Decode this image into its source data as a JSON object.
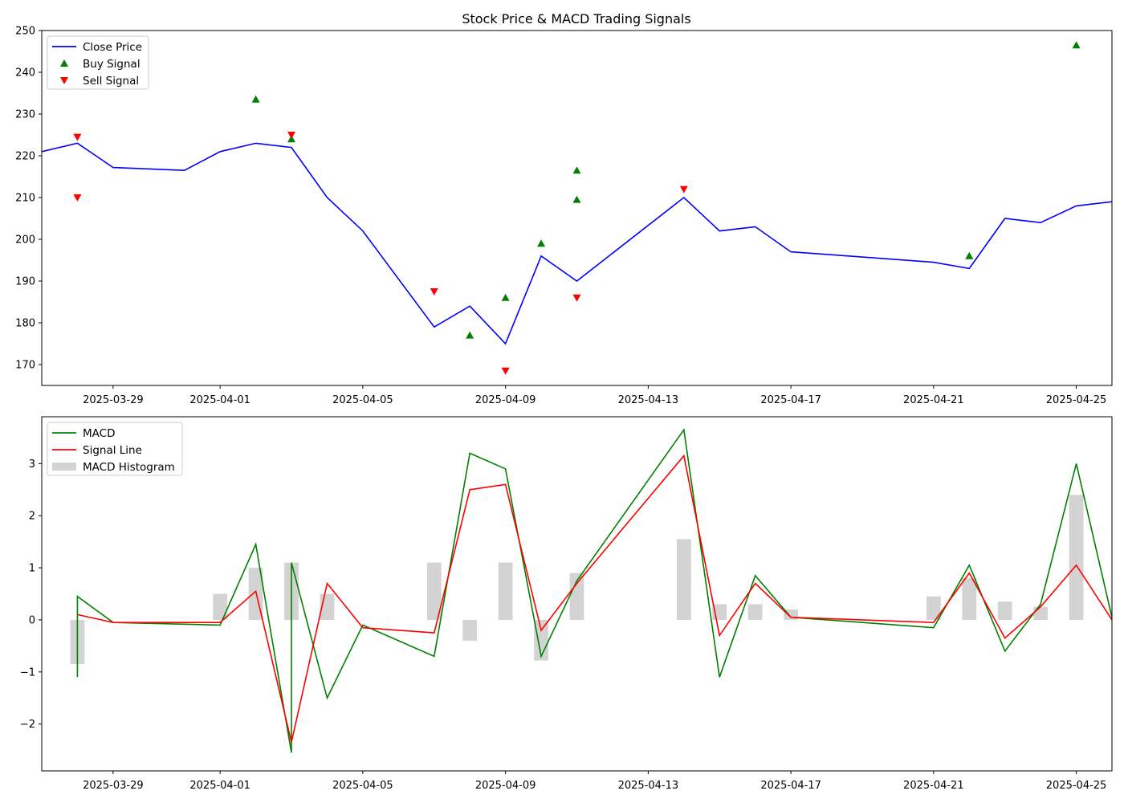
{
  "chart_data": [
    {
      "type": "line",
      "title": "Stock Price & MACD Trading Signals",
      "xlabel": "",
      "ylabel": "",
      "xlim": [
        "2025-03-27",
        "2025-04-26"
      ],
      "ylim": [
        165,
        250
      ],
      "yticks": [
        170,
        180,
        190,
        200,
        210,
        220,
        230,
        240,
        250
      ],
      "xticks": [
        "2025-03-29",
        "2025-04-01",
        "2025-04-05",
        "2025-04-09",
        "2025-04-13",
        "2025-04-17",
        "2025-04-21",
        "2025-04-25"
      ],
      "grid": false,
      "legend": {
        "placement": "top-left",
        "entries": [
          "Close Price",
          "Buy Signal",
          "Sell Signal"
        ]
      },
      "series": [
        {
          "name": "Close Price",
          "kind": "line",
          "color": "#0000ff",
          "x": [
            "2025-03-27",
            "2025-03-28",
            "2025-03-29",
            "2025-03-31",
            "2025-04-01",
            "2025-04-02",
            "2025-04-03",
            "2025-04-04",
            "2025-04-05",
            "2025-04-07",
            "2025-04-08",
            "2025-04-09",
            "2025-04-10",
            "2025-04-11",
            "2025-04-14",
            "2025-04-15",
            "2025-04-16",
            "2025-04-17",
            "2025-04-21",
            "2025-04-22",
            "2025-04-23",
            "2025-04-24",
            "2025-04-25",
            "2025-04-26"
          ],
          "y": [
            221,
            223,
            217.2,
            216.5,
            221,
            223,
            222,
            210,
            202,
            179,
            184,
            175,
            196,
            190,
            210,
            202,
            203,
            197,
            194.5,
            193,
            205,
            204,
            208,
            209
          ]
        },
        {
          "name": "Buy Signal",
          "kind": "scatter",
          "marker": "triangle-up",
          "color": "#008000",
          "x": [
            "2025-04-02",
            "2025-04-03",
            "2025-04-08",
            "2025-04-09",
            "2025-04-10",
            "2025-04-11",
            "2025-04-11",
            "2025-04-22",
            "2025-04-25"
          ],
          "y": [
            233.5,
            224,
            177,
            186,
            199,
            216.5,
            209.5,
            196,
            246.5
          ]
        },
        {
          "name": "Sell Signal",
          "kind": "scatter",
          "marker": "triangle-down",
          "color": "#ff0000",
          "x": [
            "2025-03-28",
            "2025-03-28",
            "2025-04-03",
            "2025-04-07",
            "2025-04-09",
            "2025-04-11",
            "2025-04-14"
          ],
          "y": [
            210,
            224.5,
            225,
            187.5,
            168.5,
            186,
            212
          ]
        }
      ]
    },
    {
      "type": "line",
      "title": "",
      "xlabel": "",
      "ylabel": "",
      "xlim": [
        "2025-03-27",
        "2025-04-26"
      ],
      "ylim": [
        -2.9,
        3.9
      ],
      "yticks": [
        -2,
        -1,
        0,
        1,
        2,
        3
      ],
      "ytick_labels": [
        "−2",
        "−1",
        "0",
        "1",
        "2",
        "3"
      ],
      "xticks": [
        "2025-03-29",
        "2025-04-01",
        "2025-04-05",
        "2025-04-09",
        "2025-04-13",
        "2025-04-17",
        "2025-04-21",
        "2025-04-25"
      ],
      "grid": false,
      "legend": {
        "placement": "top-left",
        "entries": [
          "MACD",
          "Signal Line",
          "MACD Histogram"
        ]
      },
      "series": [
        {
          "name": "MACD",
          "kind": "line",
          "color": "#008000",
          "x": [
            "2025-03-28",
            "2025-03-28",
            "2025-03-29",
            "2025-04-01",
            "2025-04-02",
            "2025-04-03",
            "2025-04-03",
            "2025-04-04",
            "2025-04-05",
            "2025-04-07",
            "2025-04-08",
            "2025-04-09",
            "2025-04-10",
            "2025-04-11",
            "2025-04-14",
            "2025-04-15",
            "2025-04-16",
            "2025-04-17",
            "2025-04-21",
            "2025-04-22",
            "2025-04-23",
            "2025-04-24",
            "2025-04-25",
            "2025-04-26"
          ],
          "y": [
            -1.1,
            0.45,
            -0.05,
            -0.1,
            1.45,
            -2.55,
            1.1,
            -1.5,
            -0.1,
            -0.7,
            3.2,
            2.9,
            -0.7,
            0.75,
            3.65,
            -1.1,
            0.85,
            0.05,
            -0.15,
            1.05,
            -0.6,
            0.3,
            3.0,
            0.05
          ]
        },
        {
          "name": "Signal Line",
          "kind": "line",
          "color": "#ff0000",
          "x": [
            "2025-03-28",
            "2025-03-29",
            "2025-04-01",
            "2025-04-02",
            "2025-04-03",
            "2025-04-04",
            "2025-04-05",
            "2025-04-07",
            "2025-04-08",
            "2025-04-09",
            "2025-04-10",
            "2025-04-11",
            "2025-04-14",
            "2025-04-15",
            "2025-04-16",
            "2025-04-17",
            "2025-04-21",
            "2025-04-22",
            "2025-04-23",
            "2025-04-24",
            "2025-04-25",
            "2025-04-26"
          ],
          "y": [
            0.1,
            -0.05,
            -0.05,
            0.55,
            -2.35,
            0.7,
            -0.15,
            -0.25,
            2.5,
            2.6,
            -0.2,
            0.7,
            3.15,
            -0.3,
            0.7,
            0.05,
            -0.05,
            0.9,
            -0.35,
            0.25,
            1.05,
            0.0
          ]
        },
        {
          "name": "MACD Histogram",
          "kind": "bar",
          "color": "#d3d3d3",
          "x": [
            "2025-03-28",
            "2025-04-01",
            "2025-04-02",
            "2025-04-03",
            "2025-04-04",
            "2025-04-07",
            "2025-04-08",
            "2025-04-09",
            "2025-04-10",
            "2025-04-11",
            "2025-04-14",
            "2025-04-15",
            "2025-04-16",
            "2025-04-17",
            "2025-04-21",
            "2025-04-22",
            "2025-04-23",
            "2025-04-24",
            "2025-04-25"
          ],
          "y": [
            -0.85,
            0.5,
            1.0,
            1.1,
            0.5,
            1.1,
            -0.4,
            1.1,
            -0.78,
            0.9,
            1.55,
            0.3,
            0.3,
            0.2,
            0.45,
            0.8,
            0.35,
            0.25,
            2.4
          ]
        }
      ]
    }
  ]
}
